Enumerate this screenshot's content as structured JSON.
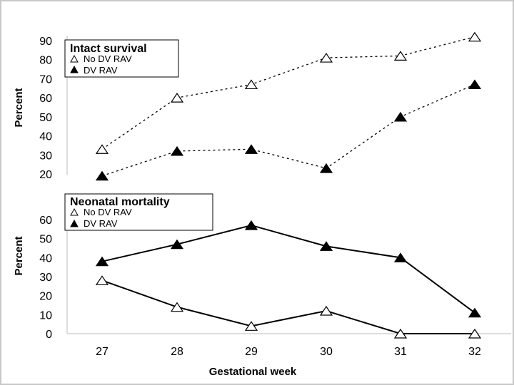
{
  "chart_data": [
    {
      "type": "line",
      "title": "Intact survival",
      "ylabel": "Percent",
      "xlabel": "",
      "categories": [
        "27",
        "28",
        "29",
        "30",
        "31",
        "32"
      ],
      "ylim": [
        20,
        90
      ],
      "yticks": [
        20,
        30,
        40,
        50,
        60,
        70,
        80,
        90
      ],
      "line_style": "dotted",
      "legend_position": "top-left",
      "series": [
        {
          "name": "No DV RAV",
          "marker": "open-triangle",
          "values": [
            33,
            60,
            67,
            81,
            82,
            92
          ]
        },
        {
          "name": "DV RAV",
          "marker": "filled-triangle",
          "values": [
            19,
            32,
            33,
            23,
            50,
            67
          ]
        }
      ]
    },
    {
      "type": "line",
      "title": "Neonatal mortality",
      "ylabel": "Percent",
      "xlabel": "Gestational week",
      "categories": [
        "27",
        "28",
        "29",
        "30",
        "31",
        "32"
      ],
      "ylim": [
        0,
        60
      ],
      "yticks": [
        0,
        10,
        20,
        30,
        40,
        50,
        60
      ],
      "line_style": "solid",
      "legend_position": "top-left",
      "series": [
        {
          "name": "No DV RAV",
          "marker": "open-triangle",
          "values": [
            28,
            14,
            4,
            12,
            0,
            0
          ]
        },
        {
          "name": "DV RAV",
          "marker": "filled-triangle",
          "values": [
            38,
            47,
            57,
            46,
            40,
            11
          ]
        }
      ]
    }
  ]
}
